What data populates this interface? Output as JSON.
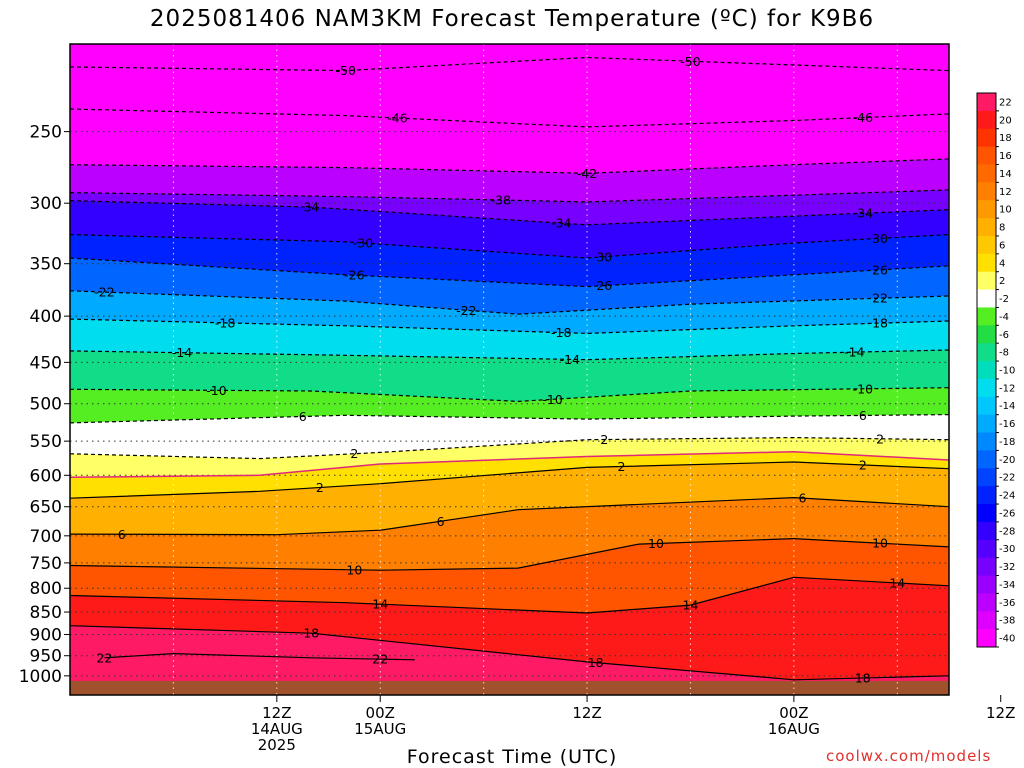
{
  "title": "2025081406 NAM3KM Forecast Temperature (ºC) for K9B6",
  "credit": "coolwx.com/models",
  "chart_data": {
    "type": "heatmap",
    "title": "2025081406 NAM3KM Forecast Temperature (ºC) for K9B6",
    "xlabel": "Forecast Time (UTC)",
    "ylabel": "",
    "y_scale": "log",
    "y_inverted": true,
    "ylim": [
      1050,
      200
    ],
    "xlim_hours": [
      -6,
      45
    ],
    "y_ticks": [
      250,
      300,
      350,
      400,
      450,
      500,
      550,
      600,
      650,
      700,
      750,
      800,
      850,
      900,
      950,
      1000
    ],
    "x_ticks": [
      {
        "h": 6,
        "lines": [
          "12Z",
          "14AUG",
          "2025"
        ]
      },
      {
        "h": 12,
        "lines": [
          "00Z",
          "15AUG"
        ]
      },
      {
        "h": 24,
        "lines": [
          "12Z"
        ]
      },
      {
        "h": 36,
        "lines": [
          "00Z",
          "16AUG"
        ]
      },
      {
        "h": 48,
        "lines": [
          "12Z"
        ]
      }
    ],
    "colorbar": {
      "levels": [
        22,
        20,
        18,
        16,
        14,
        12,
        10,
        8,
        6,
        4,
        2,
        -2,
        -4,
        -6,
        -8,
        -10,
        -12,
        -14,
        -16,
        -18,
        -20,
        -22,
        -24,
        -26,
        -28,
        -30,
        -32,
        -34,
        -36,
        -38,
        -40
      ],
      "colors": [
        "#ff1a66",
        "#ff1a1a",
        "#ff3300",
        "#ff5500",
        "#ff6a00",
        "#ff8000",
        "#ff9900",
        "#ffb000",
        "#ffc800",
        "#ffe000",
        "#ffff66",
        "#ffffff",
        "#55ee22",
        "#22dd44",
        "#11dd88",
        "#00ddbb",
        "#00ddee",
        "#00c8ff",
        "#00aaff",
        "#0088ff",
        "#0066ff",
        "#0044ff",
        "#0022ff",
        "#0000ff",
        "#3300ff",
        "#5500ff",
        "#7700ff",
        "#9900ff",
        "#bb00ff",
        "#dd00ff",
        "#ff00ff"
      ]
    },
    "surface_color": "#a0522d",
    "contours": [
      {
        "value": -50,
        "dashed": true,
        "p": [
          [
            -6,
            212
          ],
          [
            10,
            214
          ],
          [
            24,
            207
          ],
          [
            36,
            211
          ],
          [
            45,
            214
          ]
        ],
        "labels": [
          {
            "t": 10,
            "text": "-50"
          },
          {
            "t": 30,
            "text": "-50"
          }
        ]
      },
      {
        "value": -46,
        "dashed": true,
        "p": [
          [
            -6,
            236
          ],
          [
            10,
            240
          ],
          [
            24,
            247
          ],
          [
            36,
            243
          ],
          [
            45,
            239
          ]
        ],
        "labels": [
          {
            "t": 13,
            "text": "-46"
          },
          {
            "t": 40,
            "text": "-46"
          }
        ]
      },
      {
        "value": -42,
        "dashed": true,
        "p": [
          [
            -6,
            272
          ],
          [
            10,
            274
          ],
          [
            24,
            278
          ],
          [
            36,
            272
          ],
          [
            45,
            268
          ]
        ],
        "labels": [
          {
            "t": 24,
            "text": "-42"
          }
        ]
      },
      {
        "value": -38,
        "dashed": true,
        "p": [
          [
            -6,
            292
          ],
          [
            10,
            295
          ],
          [
            24,
            299
          ],
          [
            36,
            294
          ],
          [
            45,
            290
          ]
        ],
        "labels": [
          {
            "t": 19,
            "text": "-38"
          }
        ]
      },
      {
        "value": -34,
        "dashed": true,
        "p": [
          [
            -6,
            298
          ],
          [
            8,
            303
          ],
          [
            24,
            317
          ],
          [
            36,
            310
          ],
          [
            45,
            305
          ]
        ],
        "labels": [
          {
            "t": 8,
            "text": "34"
          },
          {
            "t": 22.5,
            "text": "-34"
          },
          {
            "t": 40,
            "text": "-34"
          }
        ]
      },
      {
        "value": -30,
        "dashed": true,
        "p": [
          [
            -6,
            325
          ],
          [
            10,
            331
          ],
          [
            24,
            345
          ],
          [
            36,
            332
          ],
          [
            45,
            325
          ]
        ],
        "labels": [
          {
            "t": 11,
            "text": "-30"
          },
          {
            "t": 25,
            "text": "30"
          },
          {
            "t": 41,
            "text": "30"
          }
        ]
      },
      {
        "value": -26,
        "dashed": true,
        "p": [
          [
            -6,
            345
          ],
          [
            10,
            360
          ],
          [
            24,
            371
          ],
          [
            36,
            360
          ],
          [
            45,
            352
          ]
        ],
        "labels": [
          {
            "t": 10.5,
            "text": "-26"
          },
          {
            "t": 25,
            "text": "26"
          },
          {
            "t": 41,
            "text": "26"
          }
        ]
      },
      {
        "value": -22,
        "dashed": true,
        "p": [
          [
            -6,
            375
          ],
          [
            10,
            385
          ],
          [
            20,
            398
          ],
          [
            30,
            388
          ],
          [
            45,
            380
          ]
        ],
        "labels": [
          {
            "t": -4,
            "text": "-22"
          },
          {
            "t": 17,
            "text": "-22"
          },
          {
            "t": 41,
            "text": "22"
          }
        ]
      },
      {
        "value": -18,
        "dashed": true,
        "p": [
          [
            -6,
            403
          ],
          [
            10,
            410
          ],
          [
            24,
            418
          ],
          [
            36,
            410
          ],
          [
            45,
            405
          ]
        ],
        "labels": [
          {
            "t": 3,
            "text": "-18"
          },
          {
            "t": 22.5,
            "text": "-18"
          },
          {
            "t": 41,
            "text": "18"
          }
        ]
      },
      {
        "value": -14,
        "dashed": true,
        "p": [
          [
            -6,
            437
          ],
          [
            10,
            442
          ],
          [
            24,
            447
          ],
          [
            36,
            440
          ],
          [
            45,
            436
          ]
        ],
        "labels": [
          {
            "t": 0.5,
            "text": "-14"
          },
          {
            "t": 23,
            "text": "-14"
          },
          {
            "t": 39.5,
            "text": "-14"
          }
        ]
      },
      {
        "value": -10,
        "dashed": true,
        "p": [
          [
            -6,
            482
          ],
          [
            8,
            484
          ],
          [
            20,
            497
          ],
          [
            30,
            484
          ],
          [
            45,
            480
          ]
        ],
        "labels": [
          {
            "t": 2.5,
            "text": "-10"
          },
          {
            "t": 22,
            "text": "-10"
          },
          {
            "t": 40,
            "text": "-10"
          }
        ]
      },
      {
        "value": -6,
        "dashed": true,
        "p": [
          [
            -6,
            525
          ],
          [
            10,
            515
          ],
          [
            24,
            520
          ],
          [
            36,
            516
          ],
          [
            45,
            514
          ]
        ],
        "labels": [
          {
            "t": 7.5,
            "text": "6"
          },
          {
            "t": 40,
            "text": "6"
          }
        ]
      },
      {
        "value": -2,
        "dashed": true,
        "p": [
          [
            -6,
            568
          ],
          [
            5,
            575
          ],
          [
            12,
            566
          ],
          [
            24,
            548
          ],
          [
            36,
            545
          ],
          [
            45,
            548
          ]
        ],
        "labels": [
          {
            "t": 10.5,
            "text": "2"
          },
          {
            "t": 25,
            "text": "2"
          },
          {
            "t": 41,
            "text": "2"
          }
        ]
      },
      {
        "value": 0,
        "dashed": false,
        "color": "#e0287a",
        "p": [
          [
            -6,
            603
          ],
          [
            5,
            600
          ],
          [
            12,
            583
          ],
          [
            24,
            572
          ],
          [
            36,
            565
          ],
          [
            45,
            577
          ]
        ],
        "labels": []
      },
      {
        "value": 2,
        "dashed": false,
        "p": [
          [
            -6,
            636
          ],
          [
            5,
            625
          ],
          [
            12,
            613
          ],
          [
            24,
            588
          ],
          [
            36,
            580
          ],
          [
            45,
            590
          ]
        ],
        "labels": [
          {
            "t": 8.5,
            "text": "2"
          },
          {
            "t": 26,
            "text": "2"
          },
          {
            "t": 40,
            "text": "2"
          }
        ]
      },
      {
        "value": 6,
        "dashed": false,
        "p": [
          [
            -6,
            697
          ],
          [
            6,
            698
          ],
          [
            12,
            690
          ],
          [
            20,
            655
          ],
          [
            36,
            635
          ],
          [
            45,
            650
          ]
        ],
        "labels": [
          {
            "t": -3,
            "text": "6"
          },
          {
            "t": 15.5,
            "text": "6"
          },
          {
            "t": 36.5,
            "text": "6"
          }
        ]
      },
      {
        "value": 10,
        "dashed": false,
        "p": [
          [
            -6,
            755
          ],
          [
            12,
            764
          ],
          [
            20,
            760
          ],
          [
            27,
            715
          ],
          [
            36,
            705
          ],
          [
            45,
            720
          ]
        ],
        "labels": [
          {
            "t": 10.5,
            "text": "10"
          },
          {
            "t": 28,
            "text": "10"
          },
          {
            "t": 41,
            "text": "10"
          }
        ]
      },
      {
        "value": 14,
        "dashed": false,
        "p": [
          [
            -6,
            815
          ],
          [
            10,
            830
          ],
          [
            24,
            852
          ],
          [
            30,
            835
          ],
          [
            36,
            778
          ],
          [
            45,
            795
          ]
        ],
        "labels": [
          {
            "t": 12,
            "text": "14"
          },
          {
            "t": 30,
            "text": "14"
          },
          {
            "t": 42,
            "text": "14"
          }
        ]
      },
      {
        "value": 18,
        "dashed": false,
        "p": [
          [
            -6,
            880
          ],
          [
            8,
            897
          ],
          [
            24,
            965
          ],
          [
            36,
            1010
          ],
          [
            45,
            1000
          ]
        ],
        "labels": [
          {
            "t": 8,
            "text": "18"
          },
          {
            "t": 24.5,
            "text": "18"
          },
          {
            "t": 40,
            "text": "18"
          }
        ]
      },
      {
        "value": 22,
        "dashed": false,
        "p": [
          [
            -4,
            955
          ],
          [
            0,
            945
          ],
          [
            8,
            955
          ],
          [
            14,
            960
          ]
        ],
        "labels": [
          {
            "t": -4,
            "text": "22"
          },
          {
            "t": 12,
            "text": "22"
          }
        ]
      }
    ]
  }
}
